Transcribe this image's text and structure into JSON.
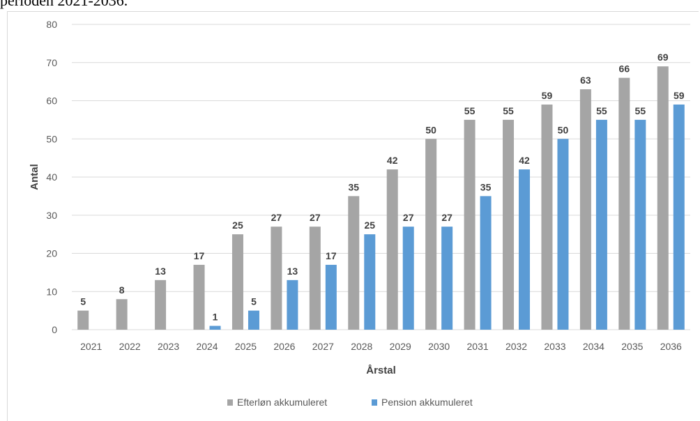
{
  "caption": "perioden 2021-2036.",
  "chart_data": {
    "type": "bar",
    "categories": [
      "2021",
      "2022",
      "2023",
      "2024",
      "2025",
      "2026",
      "2027",
      "2028",
      "2029",
      "2030",
      "2031",
      "2032",
      "2033",
      "2034",
      "2035",
      "2036"
    ],
    "series": [
      {
        "name": "Efterløn akkumuleret",
        "color": "#a5a5a5",
        "values": [
          5,
          8,
          13,
          17,
          25,
          27,
          27,
          35,
          42,
          50,
          55,
          55,
          59,
          63,
          66,
          69
        ],
        "labels": [
          "5",
          "8",
          "13",
          "17",
          "25",
          "27",
          "27",
          "35",
          "42",
          "50",
          "55",
          "55",
          "59",
          "63",
          "66",
          "69"
        ]
      },
      {
        "name": "Pension akkumuleret",
        "color": "#5b9bd5",
        "values": [
          0,
          0,
          0,
          1,
          5,
          13,
          17,
          25,
          27,
          27,
          35,
          42,
          50,
          55,
          55,
          59
        ],
        "labels": [
          "",
          "",
          "",
          "1",
          "5",
          "13",
          "17",
          "25",
          "27",
          "27",
          "35",
          "42",
          "50",
          "55",
          "55",
          "59"
        ]
      }
    ],
    "xlabel": "Årstal",
    "ylabel": "Antal",
    "ylim": [
      0,
      80
    ],
    "yticks": [
      "0",
      "10",
      "20",
      "30",
      "40",
      "50",
      "60",
      "70",
      "80"
    ],
    "grid": true,
    "legend_position": "bottom"
  }
}
